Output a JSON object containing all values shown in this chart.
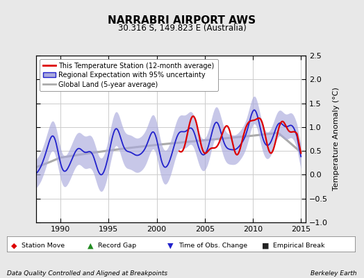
{
  "title": "NARRABRI AIRPORT AWS",
  "subtitle": "30.316 S, 149.823 E (Australia)",
  "ylabel": "Temperature Anomaly (°C)",
  "xlim": [
    1987.5,
    2015.5
  ],
  "ylim": [
    -1.0,
    2.5
  ],
  "yticks": [
    -1.0,
    -0.5,
    0.0,
    0.5,
    1.0,
    1.5,
    2.0,
    2.5
  ],
  "xticks": [
    1990,
    1995,
    2000,
    2005,
    2010,
    2015
  ],
  "bg_color": "#e8e8e8",
  "plot_bg_color": "#ffffff",
  "grid_color": "#cccccc",
  "station_color": "#dd0000",
  "regional_color": "#2222cc",
  "regional_fill_color": "#aaaadd",
  "global_color": "#aaaaaa",
  "footer_left": "Data Quality Controlled and Aligned at Breakpoints",
  "footer_right": "Berkeley Earth",
  "legend_entries": [
    "This Temperature Station (12-month average)",
    "Regional Expectation with 95% uncertainty",
    "Global Land (5-year average)"
  ]
}
